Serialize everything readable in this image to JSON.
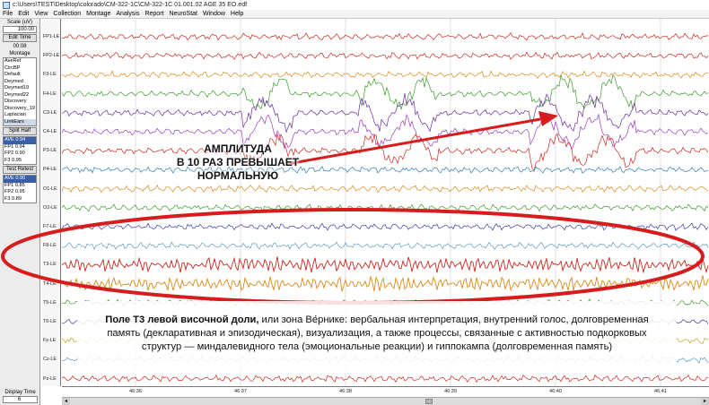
{
  "window": {
    "title": "c:\\Users\\TEST\\Desktop\\colorado\\CM-322-1C\\CM-322-1C 01.001.02 AGE 35  EO.edf"
  },
  "menu": [
    "File",
    "Edit",
    "View",
    "Collection",
    "Montage",
    "Analysis",
    "Report",
    "NeuroStat",
    "Window",
    "Help"
  ],
  "sidebar": {
    "scale_label": "Scale (uV)",
    "scale_value": "100.00",
    "edit_time_button": "Edit Time",
    "time_value": "00:08",
    "montage_label": "Montage",
    "montages": [
      "AveRef",
      "CircBP",
      "Default",
      "Deymed",
      "Deymed19",
      "Deymed22",
      "Discovery",
      "Discovery_19",
      "Laplacian",
      "LinkEars"
    ],
    "selected_montage": "LinkEars",
    "split_half_button": "Split Half",
    "box1": [
      "AVE  0.94",
      "FP1  0.94",
      "FP2  0.90",
      "F3  0.95"
    ],
    "test_retest_label": "Test Retest",
    "box2": [
      "AVE  0.90",
      "FP1  0.85",
      "FP2  0.95",
      "F3  0.89"
    ],
    "display_time_label": "Display Time",
    "display_time_value": "6"
  },
  "channels": [
    "FP1-LE",
    "FP2-LE",
    "F3-LE",
    "F4-LE",
    "C3-LE",
    "C4-LE",
    "P3-LE",
    "P4-LE",
    "O1-LE",
    "O2-LE",
    "F7-LE",
    "F8-LE",
    "T3-LE",
    "T4-LE",
    "T5-LE",
    "T6-LE",
    "Fz-LE",
    "Cz-LE",
    "Pz-LE"
  ],
  "time_ticks": [
    "46:36",
    "46:37",
    "46:38",
    "46:39",
    "46:40",
    "46:41"
  ],
  "annotations": {
    "amplitude_caption": [
      "АМПЛИТУДА",
      "В 10 РАЗ ПРЕВЫШАЕТ",
      "НОРМАЛЬНУЮ"
    ],
    "t3_bold": "Поле T3 левой височной доли,",
    "t3_rest": " или зона Ве́рнике: вербальная интерпретация, внутренний голос, долговременная память (декларативная и эпизодическая), визуализация, а также процессы, связанные с активностью подкорковых структур — миндалевидного тела (эмоциональные реакции) и гиппокампа (долговременная память)"
  },
  "colors": {
    "trace_palette": [
      "#c8281e",
      "#d98a1a",
      "#3f9a2e",
      "#6a2aa0",
      "#9a3dbb",
      "#2e7bb5",
      "#3a3aa8",
      "#5a9ac8",
      "#c8a020"
    ],
    "annotation_red": "#d61c1c"
  }
}
